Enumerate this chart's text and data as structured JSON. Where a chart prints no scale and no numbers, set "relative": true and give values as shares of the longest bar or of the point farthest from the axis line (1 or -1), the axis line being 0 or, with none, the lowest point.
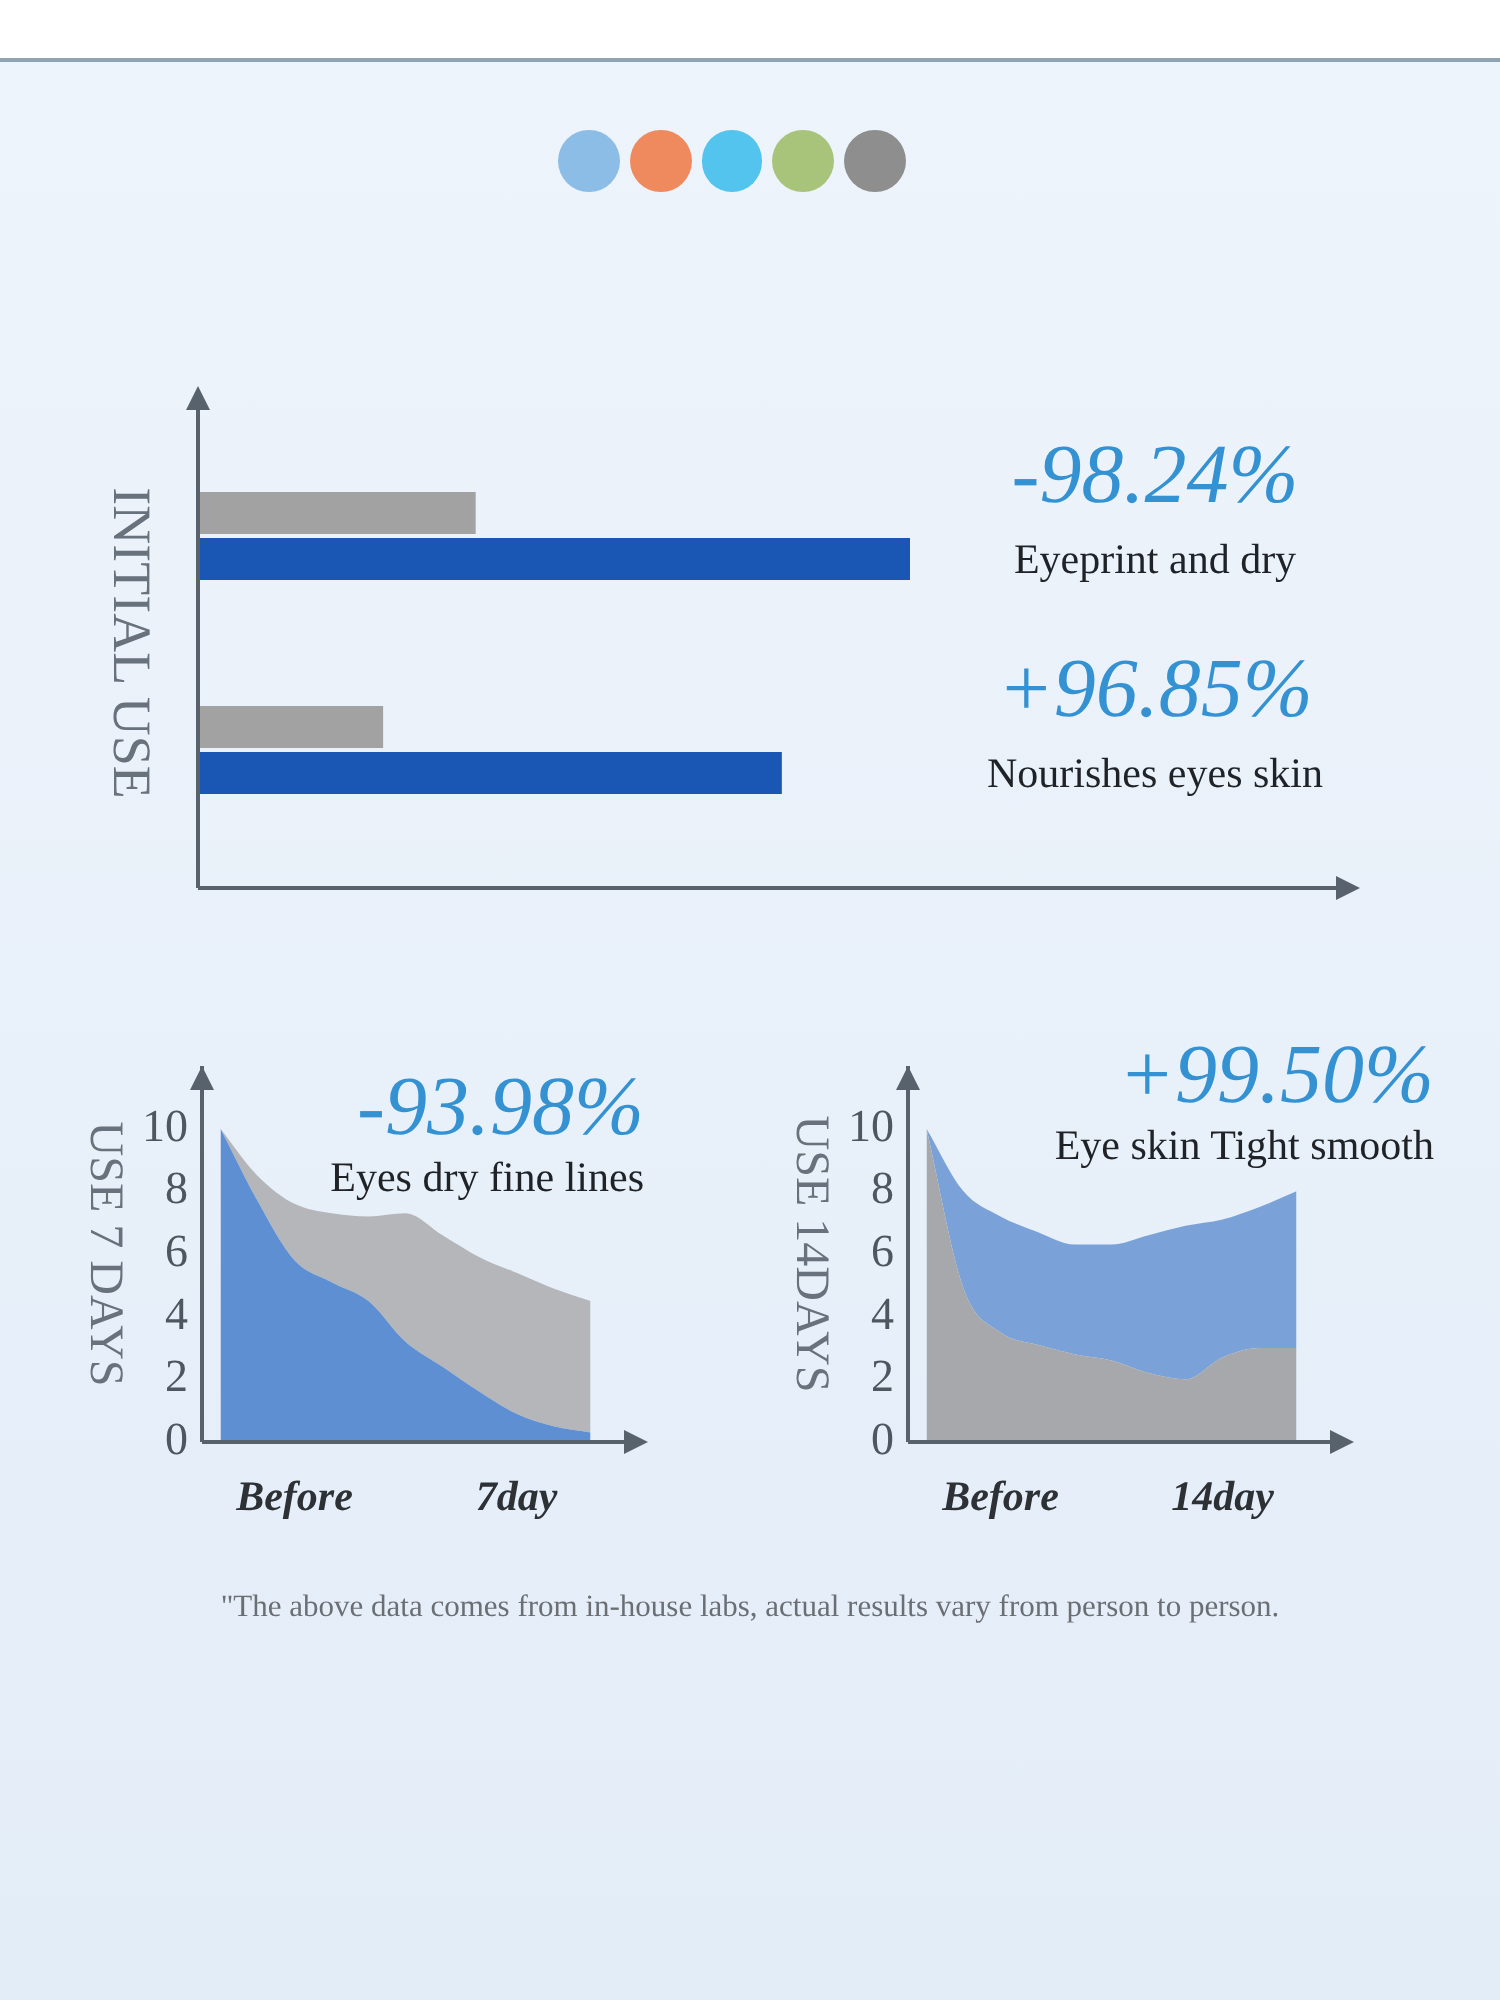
{
  "chart_data": [
    {
      "type": "bar",
      "orientation": "horizontal",
      "relative": true,
      "ylabel": "INITIAL USE",
      "categories": [
        "Eyeprint and dry",
        "Nourishes eyes skin"
      ],
      "series": [
        {
          "color": "#a2a2a2",
          "values": [
            0.39,
            0.26
          ]
        },
        {
          "color": "#1a57b4",
          "values": [
            1,
            0.82
          ]
        }
      ],
      "annotations": [
        "-98.24%",
        "+96.85%"
      ]
    },
    {
      "type": "area",
      "ylabel": "USE 7 DAYS",
      "categories": [
        null,
        null,
        "Before",
        null,
        null,
        null,
        null,
        null,
        "7day",
        null,
        null
      ],
      "ylim": [
        0,
        12
      ],
      "yticks": [
        0,
        2,
        4,
        6,
        8,
        10
      ],
      "series": [
        {
          "color": "#5d8fd2",
          "values": [
            10,
            7.7,
            5.8,
            5.1,
            4.5,
            3.2,
            2.4,
            1.6,
            0.9,
            0.5,
            0.3
          ]
        },
        {
          "color": "#b5b6b9",
          "values": [
            10,
            8.5,
            7.6,
            7.3,
            7.2,
            7.3,
            6.6,
            5.9,
            5.4,
            4.9,
            4.5
          ]
        }
      ],
      "annotations": [
        "-93.98%",
        "Eyes dry fine lines"
      ]
    },
    {
      "type": "area",
      "ylabel": "USE 14DAYS",
      "categories": [
        null,
        null,
        "Before",
        null,
        null,
        null,
        null,
        null,
        "14day",
        null,
        null
      ],
      "ylim": [
        0,
        12
      ],
      "yticks": [
        0,
        2,
        4,
        6,
        8,
        10
      ],
      "series": [
        {
          "color": "#a7a8ab",
          "values": [
            10,
            4.9,
            3.5,
            3.1,
            2.8,
            2.6,
            2.2,
            2.0,
            2.7,
            3.0,
            3.0
          ]
        },
        {
          "color": "#7aa2d9",
          "values": [
            10,
            8.0,
            7.2,
            6.7,
            6.3,
            6.3,
            6.6,
            6.9,
            7.1,
            7.5,
            8.0
          ]
        }
      ],
      "annotations": [
        "+99.50%",
        "Eye skin Tight smooth",
        "\"The above data comes from in-house labs, actual results vary from person to person."
      ]
    }
  ]
}
